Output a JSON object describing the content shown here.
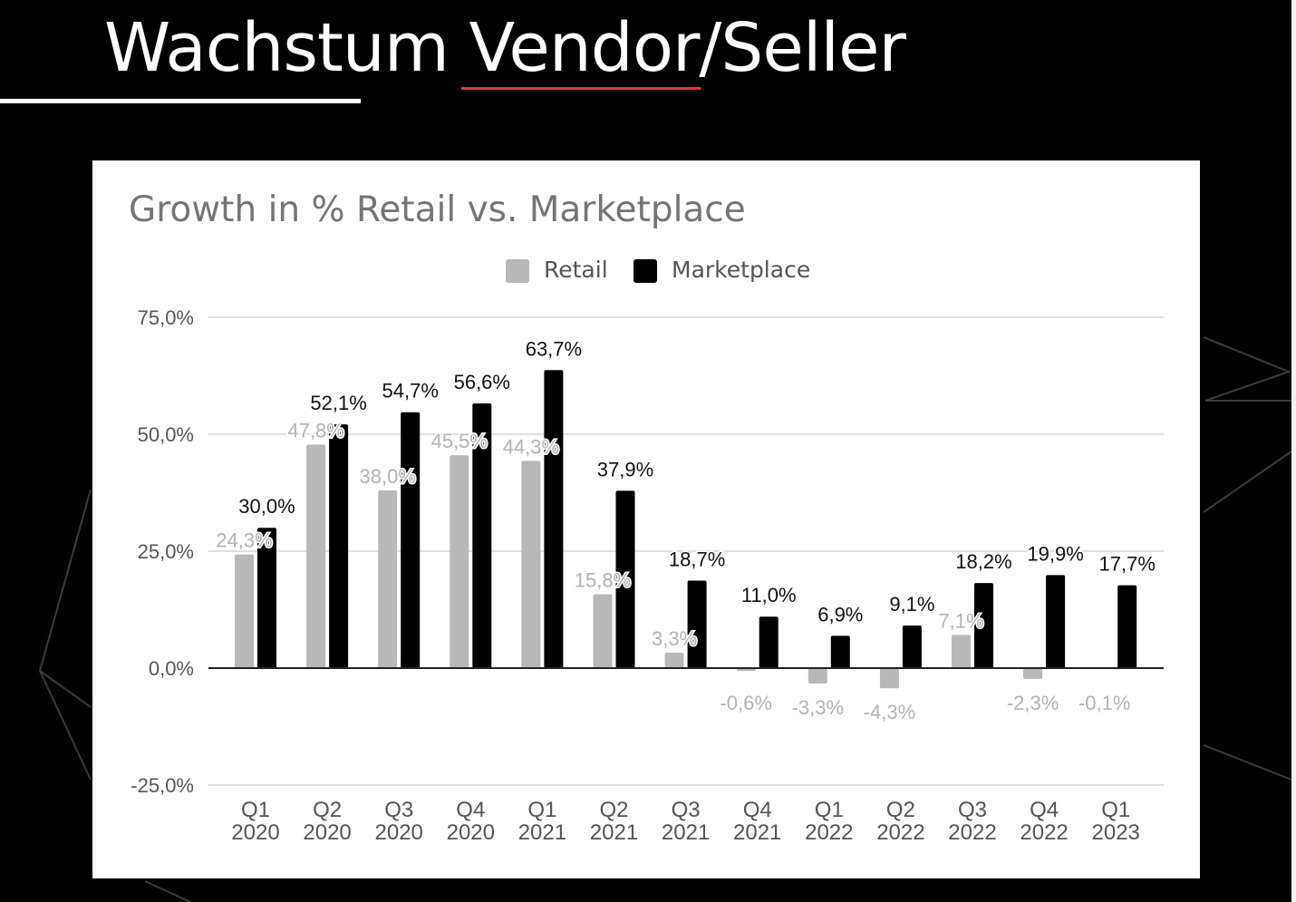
{
  "slide": {
    "title": "Wachstum Vendor/Seller"
  },
  "colors": {
    "background": "#000000",
    "retail": "#b8b8b8",
    "marketplace": "#000000",
    "title_underline_accent": "#e03a3a"
  },
  "chart_data": {
    "type": "bar",
    "title": "Growth in % Retail vs. Marketplace",
    "legend_position": "top-center",
    "grid": true,
    "ylim": [
      -25,
      75
    ],
    "y_ticks": [
      75,
      50,
      25,
      0,
      -25
    ],
    "y_tick_labels": [
      "75,0%",
      "50,0%",
      "25,0%",
      "0,0%",
      "-25,0%"
    ],
    "categories": [
      [
        "Q1",
        "2020"
      ],
      [
        "Q2",
        "2020"
      ],
      [
        "Q3",
        "2020"
      ],
      [
        "Q4",
        "2020"
      ],
      [
        "Q1",
        "2021"
      ],
      [
        "Q2",
        "2021"
      ],
      [
        "Q3",
        "2021"
      ],
      [
        "Q4",
        "2021"
      ],
      [
        "Q1",
        "2022"
      ],
      [
        "Q2",
        "2022"
      ],
      [
        "Q3",
        "2022"
      ],
      [
        "Q4",
        "2022"
      ],
      [
        "Q1",
        "2023"
      ]
    ],
    "series": [
      {
        "name": "Retail",
        "color": "#b8b8b8",
        "values": [
          24.3,
          47.8,
          38.0,
          45.5,
          44.3,
          15.8,
          3.3,
          -0.6,
          -3.3,
          -4.3,
          7.1,
          -2.3,
          -0.1
        ],
        "labels": [
          "24,3%",
          "47,8%",
          "38,0%",
          "45,5%",
          "44,3%",
          "15,8%",
          "3,3%",
          "-0,6%",
          "-3,3%",
          "-4,3%",
          "7,1%",
          "-2,3%",
          "-0,1%"
        ]
      },
      {
        "name": "Marketplace",
        "color": "#000000",
        "values": [
          30.0,
          52.1,
          54.7,
          56.6,
          63.7,
          37.9,
          18.7,
          11.0,
          6.9,
          9.1,
          18.2,
          19.9,
          17.7
        ],
        "labels": [
          "30,0%",
          "52,1%",
          "54,7%",
          "56,6%",
          "63,7%",
          "37,9%",
          "18,7%",
          "11,0%",
          "6,9%",
          "9,1%",
          "18,2%",
          "19,9%",
          "17,7%"
        ]
      }
    ]
  }
}
